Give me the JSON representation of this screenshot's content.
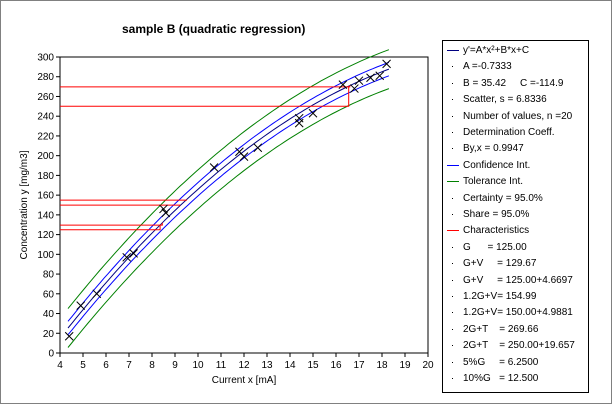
{
  "chart_data": {
    "type": "scatter",
    "title": "sample B (quadratic regression)",
    "xlabel": "Current x [mA]",
    "ylabel": "Concentration y [mg/m3]",
    "xlim": [
      4,
      20
    ],
    "ylim": [
      0,
      300
    ],
    "xticks": [
      "4",
      "5",
      "6",
      "7",
      "8",
      "9",
      "10",
      "11",
      "12",
      "13",
      "14",
      "15",
      "16",
      "17",
      "18",
      "19",
      "20"
    ],
    "yticks": [
      "0",
      "20",
      "40",
      "60",
      "80",
      "100",
      "120",
      "140",
      "160",
      "180",
      "200",
      "220",
      "240",
      "260",
      "280",
      "300"
    ],
    "grid": false,
    "legend_position": "right",
    "regression": {
      "A": -0.7333,
      "B": 35.42,
      "C": -114.9
    },
    "confidence_halfwidth": 6.8,
    "tolerance_halfwidth": 19.7,
    "points": [
      {
        "x": 4.4,
        "y": 17
      },
      {
        "x": 4.9,
        "y": 48
      },
      {
        "x": 5.6,
        "y": 60
      },
      {
        "x": 6.9,
        "y": 97
      },
      {
        "x": 7.2,
        "y": 101
      },
      {
        "x": 8.5,
        "y": 146
      },
      {
        "x": 8.6,
        "y": 142
      },
      {
        "x": 10.7,
        "y": 188
      },
      {
        "x": 11.8,
        "y": 204
      },
      {
        "x": 12.0,
        "y": 199
      },
      {
        "x": 12.6,
        "y": 208
      },
      {
        "x": 14.4,
        "y": 238
      },
      {
        "x": 14.4,
        "y": 233
      },
      {
        "x": 15.0,
        "y": 243
      },
      {
        "x": 16.3,
        "y": 272
      },
      {
        "x": 16.8,
        "y": 268
      },
      {
        "x": 17.0,
        "y": 276
      },
      {
        "x": 17.5,
        "y": 279
      },
      {
        "x": 17.9,
        "y": 281
      },
      {
        "x": 18.2,
        "y": 293
      }
    ],
    "characteristic_lines": [
      {
        "y": 125.0,
        "x": 8.35
      },
      {
        "y": 129.67,
        "x": 8.45
      },
      {
        "y": 149.9,
        "x": 9.2
      },
      {
        "y": 154.99,
        "x": 9.5
      },
      {
        "y": 250.0,
        "x": 16.55
      },
      {
        "y": 269.66,
        "x": 16.6
      }
    ]
  },
  "legend": {
    "items": [
      {
        "text": "y'=A*x²+B*x+C",
        "symbol": "line",
        "color": "#000080"
      },
      {
        "text": "A =-0.7333",
        "symbol": "dot",
        "color": "#000000"
      },
      {
        "text": "B = 35.42     C =-114.9",
        "symbol": "dot",
        "color": "#000000"
      },
      {
        "text": "Scatter, s = 6.8336",
        "symbol": "dot",
        "color": "#000000"
      },
      {
        "text": "Number of values, n =20",
        "symbol": "dot",
        "color": "#000000"
      },
      {
        "text": "Determination Coeff.",
        "symbol": "dot",
        "color": "#000000"
      },
      {
        "text": "By,x = 0.9947",
        "symbol": "dot",
        "color": "#000000"
      },
      {
        "text": "Confidence Int.",
        "symbol": "line",
        "color": "#0000ff"
      },
      {
        "text": "Tolerance Int.",
        "symbol": "line",
        "color": "#008000"
      },
      {
        "text": "Certainty = 95.0%",
        "symbol": "dot",
        "color": "#000000"
      },
      {
        "text": "Share = 95.0%",
        "symbol": "dot",
        "color": "#000000"
      },
      {
        "text": "Characteristics",
        "symbol": "line",
        "color": "#ff0000"
      },
      {
        "text": "G      = 125.00",
        "symbol": "dot",
        "color": "#000000"
      },
      {
        "text": "G+V     = 129.67",
        "symbol": "dot",
        "color": "#000000"
      },
      {
        "text": "G+V     = 125.00+4.6697",
        "symbol": "dot",
        "color": "#000000"
      },
      {
        "text": "1.2G+V= 154.99",
        "symbol": "dot",
        "color": "#000000"
      },
      {
        "text": "1.2G+V= 150.00+4.9881",
        "symbol": "dot",
        "color": "#000000"
      },
      {
        "text": "2G+T    = 269.66",
        "symbol": "dot",
        "color": "#000000"
      },
      {
        "text": "2G+T    = 250.00+19.657",
        "symbol": "dot",
        "color": "#000000"
      },
      {
        "text": "5%G     = 6.2500",
        "symbol": "dot",
        "color": "#000000"
      },
      {
        "text": "10%G   = 12.500",
        "symbol": "dot",
        "color": "#000000"
      }
    ]
  },
  "colors": {
    "regression": "#000080",
    "confidence": "#0000ff",
    "tolerance": "#008000",
    "characteristics": "#ff0000",
    "points": "#000000"
  }
}
